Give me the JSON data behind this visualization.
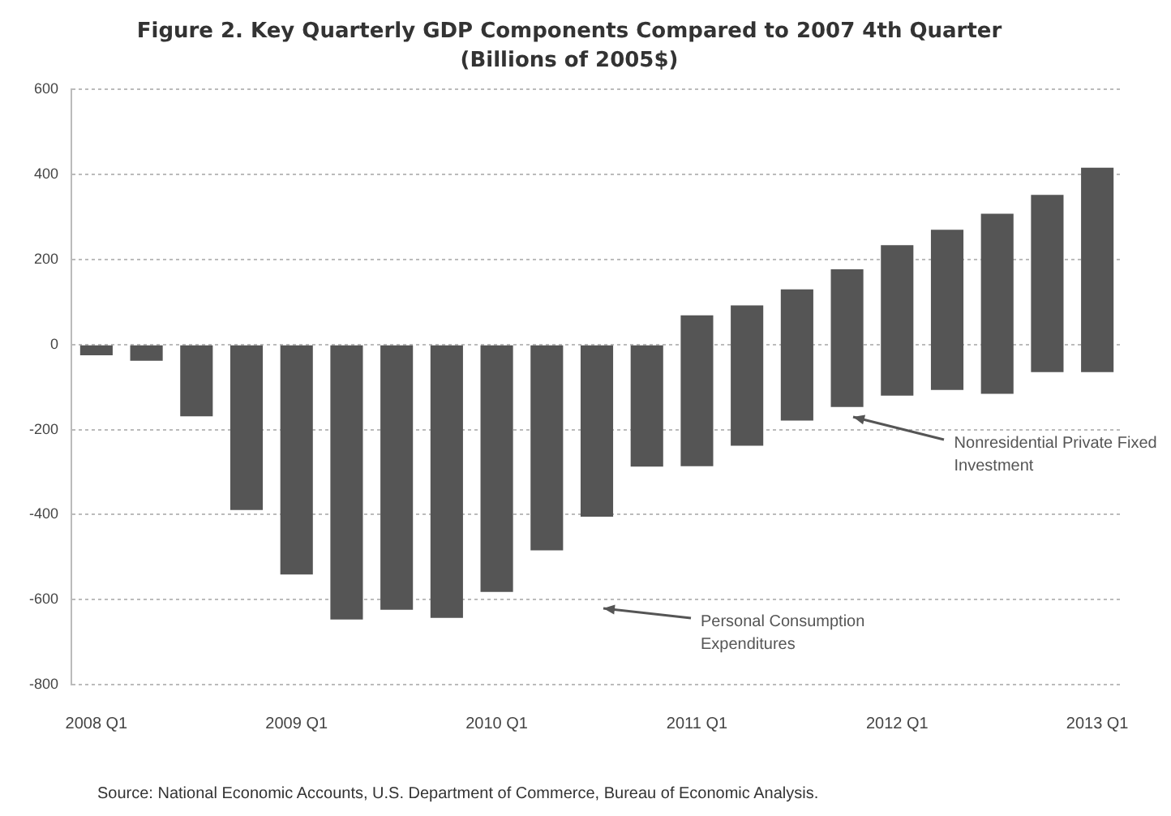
{
  "chart_data": {
    "type": "bar",
    "title": "Figure 2. Key Quarterly GDP Components Compared to 2007 4th Quarter",
    "subtitle": "(Billions of 2005$)",
    "categories": [
      "2008 Q1",
      null,
      null,
      null,
      "2009 Q1",
      null,
      null,
      null,
      "2010 Q1",
      null,
      null,
      null,
      "2011 Q1",
      null,
      null,
      null,
      "2012 Q1",
      null,
      null,
      null,
      "2013 Q1"
    ],
    "values": [
      -25,
      -38,
      -169,
      -389,
      -541,
      -647,
      -624,
      -643,
      -582,
      -484,
      -405,
      -287,
      355,
      330,
      309,
      324,
      354,
      377,
      424,
      417,
      481
    ],
    "base": [
      0,
      0,
      0,
      0,
      0,
      0,
      0,
      0,
      0,
      0,
      0,
      0,
      -286,
      -238,
      -179,
      -147,
      -120,
      -107,
      -116,
      -65,
      -65
    ],
    "color": "#555555",
    "ylim": [
      -800,
      600
    ],
    "yticks": [
      -800,
      -600,
      -400,
      -200,
      0,
      200,
      400,
      600
    ],
    "grid": "y",
    "legend": false,
    "annotations": [
      "Personal Consumption Expenditures",
      "Nonresidential Private Fixed Investment",
      "Source: National Economic Accounts, U.S. Department  of Commerce, Bureau of Economic Analysis."
    ]
  }
}
